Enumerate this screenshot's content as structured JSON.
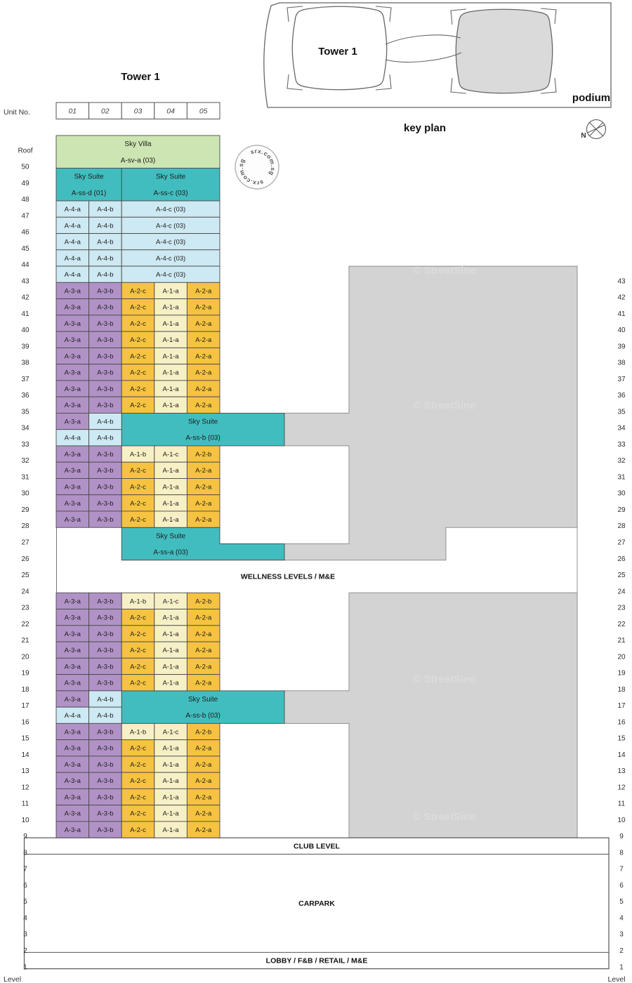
{
  "page": {
    "title": "Tower 1",
    "unit_no_label": "Unit No.",
    "level_label_left": "Level",
    "level_label_right": "Level",
    "wellness_label": "WELLNESS LEVELS / M&E"
  },
  "key_plan": {
    "caption": "key plan",
    "tower_label": "Tower 1",
    "podium_label": "podium",
    "compass_label": "N"
  },
  "stamp": {
    "text": "srx.com.sg"
  },
  "watermark": {
    "text": "© StreetSine"
  },
  "colors": {
    "green": "#cde5b2",
    "teal": "#42bdbf",
    "blue": "#cde9f3",
    "purple": "#b192c6",
    "gold": "#f6c340",
    "cream": "#f7f0c6",
    "podium_gray": "#d3d3d4",
    "keyplan_gray": "#dadadb"
  },
  "unit_columns": [
    "01",
    "02",
    "03",
    "04",
    "05"
  ],
  "left_levels": [
    "Roof",
    "50",
    "49",
    "48",
    "47",
    "46",
    "45",
    "44",
    "43",
    "42",
    "41",
    "40",
    "39",
    "38",
    "37",
    "36",
    "35",
    "34",
    "33",
    "32",
    "31",
    "30",
    "29",
    "28",
    "27",
    "26",
    "25",
    "24",
    "23",
    "22",
    "21",
    "20",
    "19",
    "18",
    "17",
    "16",
    "15",
    "14",
    "13",
    "12",
    "11",
    "10",
    "9",
    "8",
    "7",
    "6",
    "5",
    "4",
    "3",
    "2",
    "1"
  ],
  "right_levels": [
    "43",
    "42",
    "41",
    "40",
    "39",
    "38",
    "37",
    "36",
    "35",
    "34",
    "33",
    "32",
    "31",
    "30",
    "29",
    "28",
    "27",
    "26",
    "25",
    "24",
    "23",
    "22",
    "21",
    "20",
    "19",
    "18",
    "17",
    "16",
    "15",
    "14",
    "13",
    "12",
    "11",
    "10",
    "9",
    "8",
    "7",
    "6",
    "5",
    "4",
    "3",
    "2",
    "1"
  ],
  "right_levels_start_row": 8,
  "bottom_sections": [
    {
      "label": "CLUB LEVEL"
    },
    {
      "label": "CARPARK"
    },
    {
      "label": "LOBBY / F&B / RETAIL / M&E"
    }
  ],
  "blocks": [
    {
      "row": 0,
      "rowspan": 2,
      "col": 0,
      "colspan": 5,
      "k": "green",
      "line1": "Sky Villa",
      "line2": "A-sv-a (03)"
    },
    {
      "row": 2,
      "rowspan": 2,
      "col": 0,
      "colspan": 2,
      "k": "teal",
      "line1": "Sky Suite",
      "line2": "A-ss-d (01)"
    },
    {
      "row": 2,
      "rowspan": 2,
      "col": 2,
      "colspan": 3,
      "k": "teal",
      "line1": "Sky Suite",
      "line2": "A-ss-c (03)"
    },
    {
      "row": 17,
      "rowspan": 2,
      "col": 2,
      "colspan": 3,
      "ext": 92,
      "k": "teal",
      "line1": "Sky Suite",
      "line2": "A-ss-b (03)"
    },
    {
      "row": 24,
      "rowspan": 2,
      "col": 2,
      "colspan": 3,
      "ext": 92,
      "step": true,
      "k": "teal",
      "line1": "Sky Suite",
      "line2": "A-ss-a (03)"
    },
    {
      "row": 34,
      "rowspan": 2,
      "col": 2,
      "colspan": 3,
      "ext": 92,
      "k": "teal",
      "line1": "Sky Suite",
      "line2": "A-ss-b (03)"
    }
  ],
  "unit_rows": [
    {
      "row": 4,
      "level": "47",
      "cells": [
        {
          "t": "A-4-a",
          "k": "blue"
        },
        {
          "t": "A-4-b",
          "k": "blue"
        },
        {
          "t": "A-4-c (03)",
          "k": "blue",
          "span": 3
        }
      ]
    },
    {
      "row": 5,
      "level": "46",
      "cells": [
        {
          "t": "A-4-a",
          "k": "blue"
        },
        {
          "t": "A-4-b",
          "k": "blue"
        },
        {
          "t": "A-4-c (03)",
          "k": "blue",
          "span": 3
        }
      ]
    },
    {
      "row": 6,
      "level": "45",
      "cells": [
        {
          "t": "A-4-a",
          "k": "blue"
        },
        {
          "t": "A-4-b",
          "k": "blue"
        },
        {
          "t": "A-4-c (03)",
          "k": "blue",
          "span": 3
        }
      ]
    },
    {
      "row": 7,
      "level": "44",
      "cells": [
        {
          "t": "A-4-a",
          "k": "blue"
        },
        {
          "t": "A-4-b",
          "k": "blue"
        },
        {
          "t": "A-4-c (03)",
          "k": "blue",
          "span": 3
        }
      ]
    },
    {
      "row": 8,
      "level": "43",
      "cells": [
        {
          "t": "A-4-a",
          "k": "blue"
        },
        {
          "t": "A-4-b",
          "k": "blue"
        },
        {
          "t": "A-4-c (03)",
          "k": "blue",
          "span": 3
        }
      ]
    },
    {
      "row": 9,
      "level": "42",
      "cells": [
        {
          "t": "A-3-a",
          "k": "purple"
        },
        {
          "t": "A-3-b",
          "k": "purple"
        },
        {
          "t": "A-2-c",
          "k": "gold"
        },
        {
          "t": "A-1-a",
          "k": "cream"
        },
        {
          "t": "A-2-a",
          "k": "gold"
        }
      ]
    },
    {
      "row": 10,
      "level": "41",
      "cells": [
        {
          "t": "A-3-a",
          "k": "purple"
        },
        {
          "t": "A-3-b",
          "k": "purple"
        },
        {
          "t": "A-2-c",
          "k": "gold"
        },
        {
          "t": "A-1-a",
          "k": "cream"
        },
        {
          "t": "A-2-a",
          "k": "gold"
        }
      ]
    },
    {
      "row": 11,
      "level": "40",
      "cells": [
        {
          "t": "A-3-a",
          "k": "purple"
        },
        {
          "t": "A-3-b",
          "k": "purple"
        },
        {
          "t": "A-2-c",
          "k": "gold"
        },
        {
          "t": "A-1-a",
          "k": "cream"
        },
        {
          "t": "A-2-a",
          "k": "gold"
        }
      ]
    },
    {
      "row": 12,
      "level": "39",
      "cells": [
        {
          "t": "A-3-a",
          "k": "purple"
        },
        {
          "t": "A-3-b",
          "k": "purple"
        },
        {
          "t": "A-2-c",
          "k": "gold"
        },
        {
          "t": "A-1-a",
          "k": "cream"
        },
        {
          "t": "A-2-a",
          "k": "gold"
        }
      ]
    },
    {
      "row": 13,
      "level": "38",
      "cells": [
        {
          "t": "A-3-a",
          "k": "purple"
        },
        {
          "t": "A-3-b",
          "k": "purple"
        },
        {
          "t": "A-2-c",
          "k": "gold"
        },
        {
          "t": "A-1-a",
          "k": "cream"
        },
        {
          "t": "A-2-a",
          "k": "gold"
        }
      ]
    },
    {
      "row": 14,
      "level": "37",
      "cells": [
        {
          "t": "A-3-a",
          "k": "purple"
        },
        {
          "t": "A-3-b",
          "k": "purple"
        },
        {
          "t": "A-2-c",
          "k": "gold"
        },
        {
          "t": "A-1-a",
          "k": "cream"
        },
        {
          "t": "A-2-a",
          "k": "gold"
        }
      ]
    },
    {
      "row": 15,
      "level": "36",
      "cells": [
        {
          "t": "A-3-a",
          "k": "purple"
        },
        {
          "t": "A-3-b",
          "k": "purple"
        },
        {
          "t": "A-2-c",
          "k": "gold"
        },
        {
          "t": "A-1-a",
          "k": "cream"
        },
        {
          "t": "A-2-a",
          "k": "gold"
        }
      ]
    },
    {
      "row": 16,
      "level": "35",
      "cells": [
        {
          "t": "A-3-a",
          "k": "purple"
        },
        {
          "t": "A-3-b",
          "k": "purple"
        },
        {
          "t": "A-2-c",
          "k": "gold"
        },
        {
          "t": "A-1-a",
          "k": "cream"
        },
        {
          "t": "A-2-a",
          "k": "gold"
        }
      ]
    },
    {
      "row": 17,
      "level": "34",
      "cells": [
        {
          "t": "A-3-a",
          "k": "purple"
        },
        {
          "t": "A-4-b",
          "k": "blue"
        }
      ]
    },
    {
      "row": 18,
      "level": "33",
      "cells": [
        {
          "t": "A-4-a",
          "k": "blue"
        },
        {
          "t": "A-4-b",
          "k": "blue"
        }
      ]
    },
    {
      "row": 19,
      "level": "32",
      "cells": [
        {
          "t": "A-3-a",
          "k": "purple"
        },
        {
          "t": "A-3-b",
          "k": "purple"
        },
        {
          "t": "A-1-b",
          "k": "cream"
        },
        {
          "t": "A-1-c",
          "k": "cream"
        },
        {
          "t": "A-2-b",
          "k": "gold"
        }
      ]
    },
    {
      "row": 20,
      "level": "31",
      "cells": [
        {
          "t": "A-3-a",
          "k": "purple"
        },
        {
          "t": "A-3-b",
          "k": "purple"
        },
        {
          "t": "A-2-c",
          "k": "gold"
        },
        {
          "t": "A-1-a",
          "k": "cream"
        },
        {
          "t": "A-2-a",
          "k": "gold"
        }
      ]
    },
    {
      "row": 21,
      "level": "30",
      "cells": [
        {
          "t": "A-3-a",
          "k": "purple"
        },
        {
          "t": "A-3-b",
          "k": "purple"
        },
        {
          "t": "A-2-c",
          "k": "gold"
        },
        {
          "t": "A-1-a",
          "k": "cream"
        },
        {
          "t": "A-2-a",
          "k": "gold"
        }
      ]
    },
    {
      "row": 22,
      "level": "29",
      "cells": [
        {
          "t": "A-3-a",
          "k": "purple"
        },
        {
          "t": "A-3-b",
          "k": "purple"
        },
        {
          "t": "A-2-c",
          "k": "gold"
        },
        {
          "t": "A-1-a",
          "k": "cream"
        },
        {
          "t": "A-2-a",
          "k": "gold"
        }
      ]
    },
    {
      "row": 23,
      "level": "28",
      "cells": [
        {
          "t": "A-3-a",
          "k": "purple"
        },
        {
          "t": "A-3-b",
          "k": "purple"
        },
        {
          "t": "A-2-c",
          "k": "gold"
        },
        {
          "t": "A-1-a",
          "k": "cream"
        },
        {
          "t": "A-2-a",
          "k": "gold"
        }
      ]
    },
    {
      "row": 28,
      "level": "23",
      "cells": [
        {
          "t": "A-3-a",
          "k": "purple"
        },
        {
          "t": "A-3-b",
          "k": "purple"
        },
        {
          "t": "A-1-b",
          "k": "cream"
        },
        {
          "t": "A-1-c",
          "k": "cream"
        },
        {
          "t": "A-2-b",
          "k": "gold"
        }
      ]
    },
    {
      "row": 29,
      "level": "22",
      "cells": [
        {
          "t": "A-3-a",
          "k": "purple"
        },
        {
          "t": "A-3-b",
          "k": "purple"
        },
        {
          "t": "A-2-c",
          "k": "gold"
        },
        {
          "t": "A-1-a",
          "k": "cream"
        },
        {
          "t": "A-2-a",
          "k": "gold"
        }
      ]
    },
    {
      "row": 30,
      "level": "21",
      "cells": [
        {
          "t": "A-3-a",
          "k": "purple"
        },
        {
          "t": "A-3-b",
          "k": "purple"
        },
        {
          "t": "A-2-c",
          "k": "gold"
        },
        {
          "t": "A-1-a",
          "k": "cream"
        },
        {
          "t": "A-2-a",
          "k": "gold"
        }
      ]
    },
    {
      "row": 31,
      "level": "20",
      "cells": [
        {
          "t": "A-3-a",
          "k": "purple"
        },
        {
          "t": "A-3-b",
          "k": "purple"
        },
        {
          "t": "A-2-c",
          "k": "gold"
        },
        {
          "t": "A-1-a",
          "k": "cream"
        },
        {
          "t": "A-2-a",
          "k": "gold"
        }
      ]
    },
    {
      "row": 32,
      "level": "19",
      "cells": [
        {
          "t": "A-3-a",
          "k": "purple"
        },
        {
          "t": "A-3-b",
          "k": "purple"
        },
        {
          "t": "A-2-c",
          "k": "gold"
        },
        {
          "t": "A-1-a",
          "k": "cream"
        },
        {
          "t": "A-2-a",
          "k": "gold"
        }
      ]
    },
    {
      "row": 33,
      "level": "18",
      "cells": [
        {
          "t": "A-3-a",
          "k": "purple"
        },
        {
          "t": "A-3-b",
          "k": "purple"
        },
        {
          "t": "A-2-c",
          "k": "gold"
        },
        {
          "t": "A-1-a",
          "k": "cream"
        },
        {
          "t": "A-2-a",
          "k": "gold"
        }
      ]
    },
    {
      "row": 34,
      "level": "17",
      "cells": [
        {
          "t": "A-3-a",
          "k": "purple"
        },
        {
          "t": "A-4-b",
          "k": "blue"
        }
      ]
    },
    {
      "row": 35,
      "level": "16",
      "cells": [
        {
          "t": "A-4-a",
          "k": "blue"
        },
        {
          "t": "A-4-b",
          "k": "blue"
        }
      ]
    },
    {
      "row": 36,
      "level": "15",
      "cells": [
        {
          "t": "A-3-a",
          "k": "purple"
        },
        {
          "t": "A-3-b",
          "k": "purple"
        },
        {
          "t": "A-1-b",
          "k": "cream"
        },
        {
          "t": "A-1-c",
          "k": "cream"
        },
        {
          "t": "A-2-b",
          "k": "gold"
        }
      ]
    },
    {
      "row": 37,
      "level": "14",
      "cells": [
        {
          "t": "A-3-a",
          "k": "purple"
        },
        {
          "t": "A-3-b",
          "k": "purple"
        },
        {
          "t": "A-2-c",
          "k": "gold"
        },
        {
          "t": "A-1-a",
          "k": "cream"
        },
        {
          "t": "A-2-a",
          "k": "gold"
        }
      ]
    },
    {
      "row": 38,
      "level": "13",
      "cells": [
        {
          "t": "A-3-a",
          "k": "purple"
        },
        {
          "t": "A-3-b",
          "k": "purple"
        },
        {
          "t": "A-2-c",
          "k": "gold"
        },
        {
          "t": "A-1-a",
          "k": "cream"
        },
        {
          "t": "A-2-a",
          "k": "gold"
        }
      ]
    },
    {
      "row": 39,
      "level": "12",
      "cells": [
        {
          "t": "A-3-a",
          "k": "purple"
        },
        {
          "t": "A-3-b",
          "k": "purple"
        },
        {
          "t": "A-2-c",
          "k": "gold"
        },
        {
          "t": "A-1-a",
          "k": "cream"
        },
        {
          "t": "A-2-a",
          "k": "gold"
        }
      ]
    },
    {
      "row": 40,
      "level": "11",
      "cells": [
        {
          "t": "A-3-a",
          "k": "purple"
        },
        {
          "t": "A-3-b",
          "k": "purple"
        },
        {
          "t": "A-2-c",
          "k": "gold"
        },
        {
          "t": "A-1-a",
          "k": "cream"
        },
        {
          "t": "A-2-a",
          "k": "gold"
        }
      ]
    },
    {
      "row": 41,
      "level": "10",
      "cells": [
        {
          "t": "A-3-a",
          "k": "purple"
        },
        {
          "t": "A-3-b",
          "k": "purple"
        },
        {
          "t": "A-2-c",
          "k": "gold"
        },
        {
          "t": "A-1-a",
          "k": "cream"
        },
        {
          "t": "A-2-a",
          "k": "gold"
        }
      ]
    },
    {
      "row": 42,
      "level": "9",
      "cells": [
        {
          "t": "A-3-a",
          "k": "purple"
        },
        {
          "t": "A-3-b",
          "k": "purple"
        },
        {
          "t": "A-2-c",
          "k": "gold"
        },
        {
          "t": "A-1-a",
          "k": "cream"
        },
        {
          "t": "A-2-a",
          "k": "gold"
        }
      ]
    }
  ]
}
